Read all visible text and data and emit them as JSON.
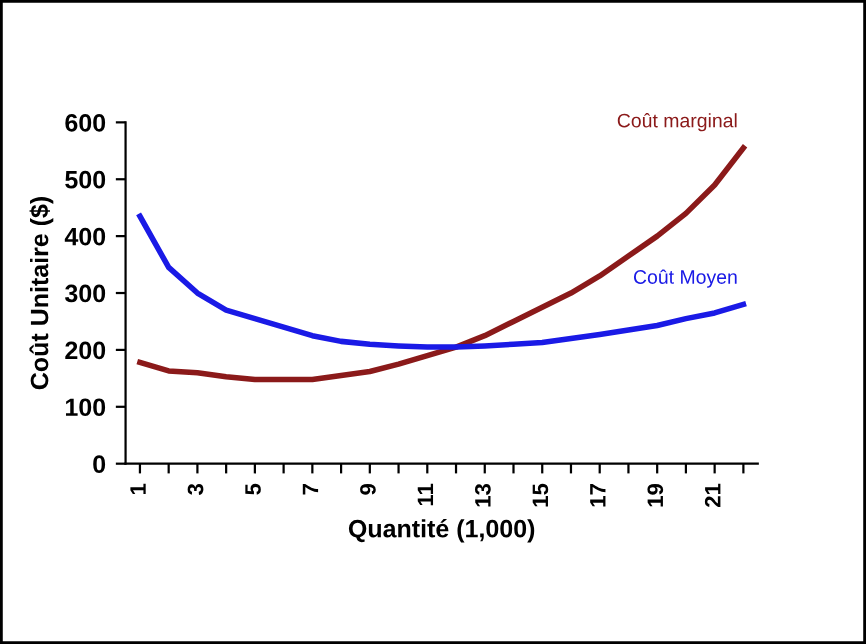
{
  "chart_data": {
    "type": "line",
    "xlabel": "Quantité (1,000)",
    "ylabel": "Coût Unitaire ($)",
    "categories": [
      "1",
      null,
      "3",
      null,
      "5",
      null,
      "7",
      null,
      "9",
      null,
      "11",
      null,
      "13",
      null,
      "15",
      null,
      "17",
      null,
      "19",
      null,
      "21",
      null
    ],
    "series": [
      {
        "name": "Coût marginal",
        "color": "#8b1a1a",
        "values": [
          178,
          163,
          160,
          153,
          148,
          148,
          148,
          155,
          162,
          175,
          190,
          205,
          225,
          250,
          275,
          300,
          330,
          365,
          400,
          440,
          490,
          555
        ]
      },
      {
        "name": "Coût Moyen",
        "color": "#1a1ae6",
        "values": [
          435,
          345,
          300,
          270,
          255,
          240,
          225,
          215,
          210,
          207,
          205,
          205,
          207,
          210,
          213,
          220,
          227,
          235,
          243,
          255,
          265,
          280
        ]
      }
    ],
    "ylim": [
      0,
      600
    ],
    "yticks": [
      0,
      100,
      200,
      300,
      400,
      500,
      600
    ],
    "grid": false,
    "marker": "none",
    "line_style": "solid"
  }
}
